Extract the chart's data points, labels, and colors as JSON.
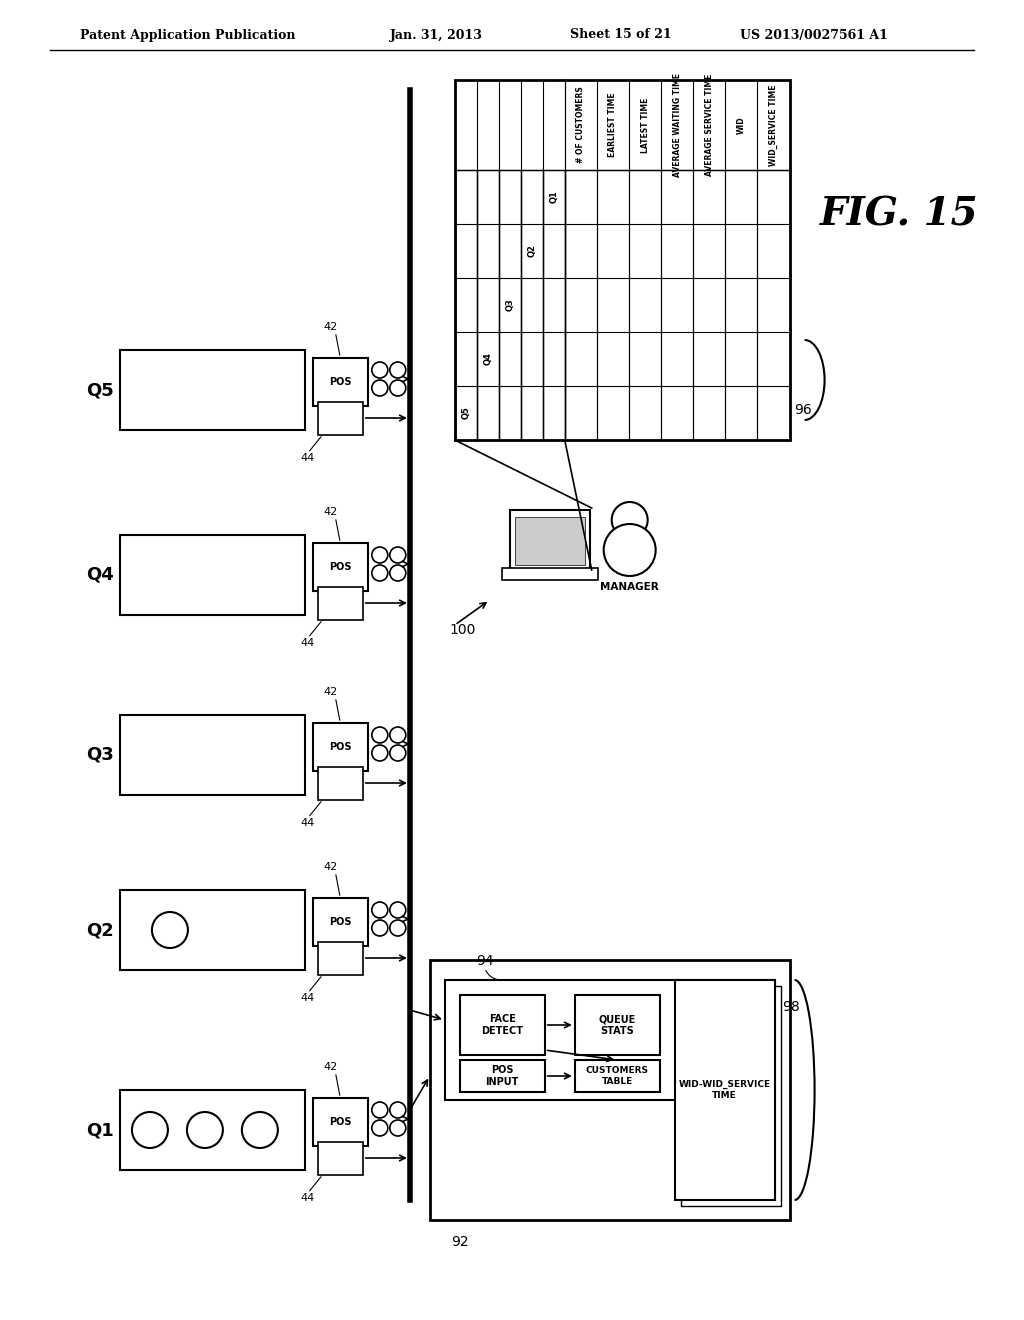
{
  "bg_color": "#ffffff",
  "header_text": "Patent Application Publication",
  "header_date": "Jan. 31, 2013",
  "header_sheet": "Sheet 15 of 21",
  "header_patent": "US 2013/0027561 A1",
  "fig_label": "FIG. 15",
  "queues": [
    "Q1",
    "Q2",
    "Q3",
    "Q4",
    "Q5"
  ],
  "table_rows": [
    "# OF CUSTOMERS",
    "EARLIEST TIME",
    "LATEST TIME",
    "AVERAGE WAITING TIME",
    "AVERAGE SERVICE TIME",
    "WID",
    "WID_SERVICE TIME"
  ],
  "table_cols": [
    "Q1",
    "Q2",
    "Q3",
    "Q4",
    "Q5"
  ]
}
